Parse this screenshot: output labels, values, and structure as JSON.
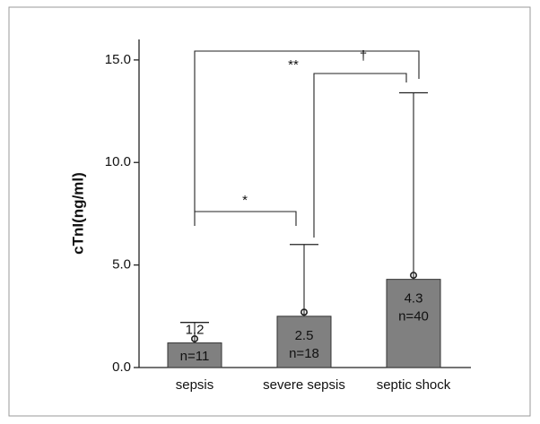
{
  "chart_data": {
    "type": "bar",
    "y_label": "cTnI(ng/ml)",
    "categories": [
      "sepsis",
      "severe sepsis",
      "septic shock"
    ],
    "values": [
      1.2,
      2.5,
      4.3
    ],
    "errors": [
      1.0,
      3.5,
      9.1
    ],
    "points": [
      1.4,
      2.7,
      4.5
    ],
    "n_labels": [
      "n=11",
      "n=18",
      "n=40"
    ],
    "color": "#808080",
    "ylim": [
      0,
      16
    ],
    "yticks": [
      {
        "value": 0,
        "label": "0.0"
      },
      {
        "value": 5,
        "label": "5.0"
      },
      {
        "value": 10,
        "label": "10.0"
      },
      {
        "value": 15,
        "label": "15.0"
      }
    ],
    "annotations": [
      "*",
      "**",
      "†"
    ]
  }
}
